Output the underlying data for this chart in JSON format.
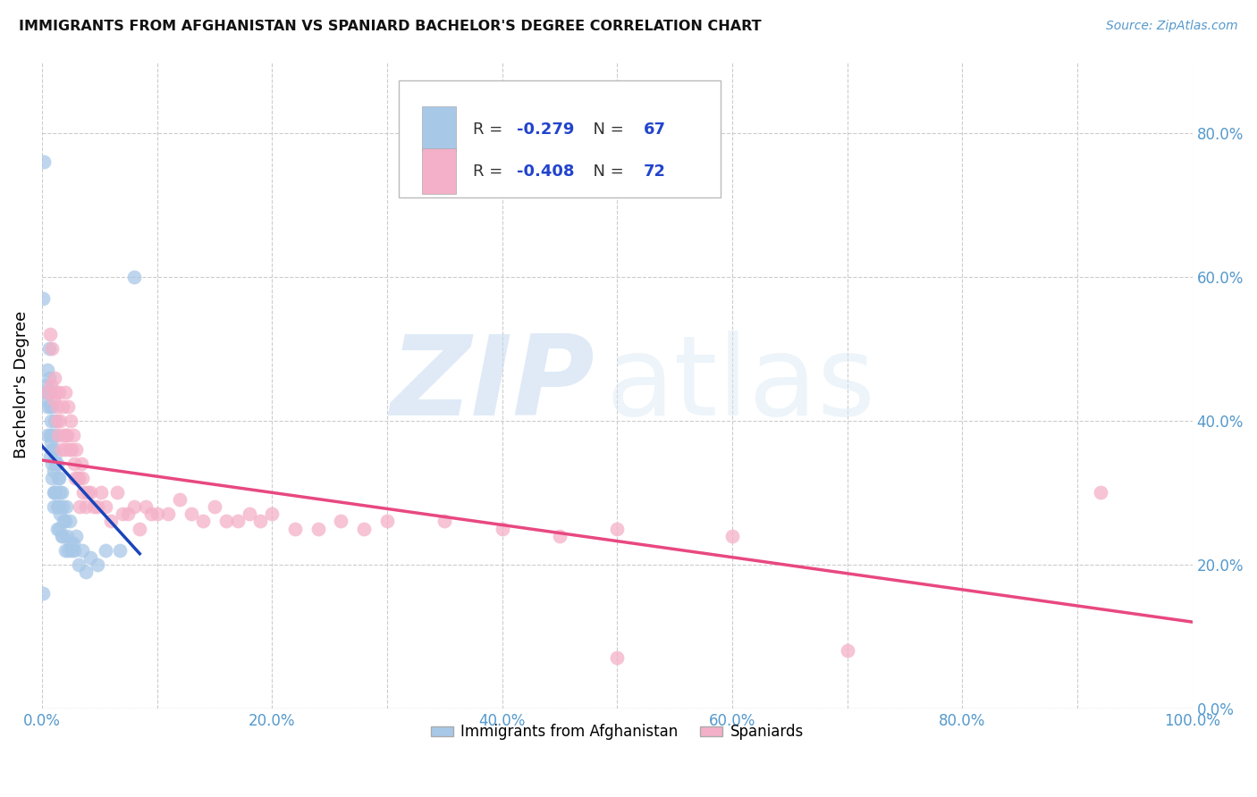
{
  "title": "IMMIGRANTS FROM AFGHANISTAN VS SPANIARD BACHELOR'S DEGREE CORRELATION CHART",
  "source": "Source: ZipAtlas.com",
  "ylabel": "Bachelor's Degree",
  "legend_label1": "Immigrants from Afghanistan",
  "legend_label2": "Spaniards",
  "r1": -0.279,
  "n1": 67,
  "r2": -0.408,
  "n2": 72,
  "color1": "#a8c8e8",
  "color2": "#f4b0c8",
  "line_color1": "#1a44bb",
  "line_color2": "#e84880",
  "bg_color": "#ffffff",
  "grid_color": "#cccccc",
  "watermark_zip": "ZIP",
  "watermark_atlas": "atlas",
  "xlim": [
    0.0,
    1.0
  ],
  "ylim": [
    0.0,
    0.9
  ],
  "xticks": [
    0.0,
    0.1,
    0.2,
    0.3,
    0.4,
    0.5,
    0.6,
    0.7,
    0.8,
    0.9,
    1.0
  ],
  "xtick_labels_show": [
    0.0,
    0.2,
    0.4,
    0.6,
    0.8,
    1.0
  ],
  "xtick_labels": [
    "0.0%",
    "",
    "20.0%",
    "",
    "40.0%",
    "",
    "60.0%",
    "",
    "80.0%",
    "",
    "100.0%"
  ],
  "yticks": [
    0.0,
    0.2,
    0.4,
    0.6,
    0.8
  ],
  "ytick_labels_right": [
    "0.0%",
    "20.0%",
    "40.0%",
    "60.0%",
    "80.0%"
  ],
  "scatter1_x": [
    0.001,
    0.002,
    0.003,
    0.004,
    0.004,
    0.005,
    0.005,
    0.005,
    0.006,
    0.006,
    0.006,
    0.007,
    0.007,
    0.007,
    0.008,
    0.008,
    0.008,
    0.009,
    0.009,
    0.009,
    0.009,
    0.009,
    0.01,
    0.01,
    0.01,
    0.01,
    0.011,
    0.011,
    0.011,
    0.012,
    0.012,
    0.012,
    0.013,
    0.013,
    0.013,
    0.014,
    0.014,
    0.015,
    0.015,
    0.015,
    0.016,
    0.016,
    0.017,
    0.017,
    0.018,
    0.018,
    0.019,
    0.02,
    0.02,
    0.021,
    0.022,
    0.023,
    0.024,
    0.025,
    0.026,
    0.027,
    0.028,
    0.03,
    0.032,
    0.035,
    0.038,
    0.042,
    0.048,
    0.055,
    0.068,
    0.08,
    0.001
  ],
  "scatter1_y": [
    0.16,
    0.76,
    0.44,
    0.43,
    0.45,
    0.42,
    0.38,
    0.47,
    0.5,
    0.46,
    0.44,
    0.42,
    0.38,
    0.35,
    0.44,
    0.4,
    0.37,
    0.42,
    0.38,
    0.36,
    0.34,
    0.32,
    0.36,
    0.33,
    0.3,
    0.28,
    0.4,
    0.35,
    0.3,
    0.38,
    0.34,
    0.3,
    0.34,
    0.28,
    0.25,
    0.32,
    0.28,
    0.32,
    0.28,
    0.25,
    0.3,
    0.27,
    0.3,
    0.24,
    0.28,
    0.24,
    0.26,
    0.26,
    0.22,
    0.28,
    0.24,
    0.22,
    0.26,
    0.23,
    0.22,
    0.23,
    0.22,
    0.24,
    0.2,
    0.22,
    0.19,
    0.21,
    0.2,
    0.22,
    0.22,
    0.6,
    0.57
  ],
  "scatter2_x": [
    0.005,
    0.007,
    0.008,
    0.009,
    0.01,
    0.011,
    0.012,
    0.013,
    0.013,
    0.014,
    0.015,
    0.016,
    0.017,
    0.018,
    0.019,
    0.02,
    0.02,
    0.021,
    0.022,
    0.023,
    0.024,
    0.025,
    0.026,
    0.027,
    0.028,
    0.029,
    0.03,
    0.031,
    0.032,
    0.033,
    0.034,
    0.035,
    0.036,
    0.038,
    0.04,
    0.042,
    0.045,
    0.048,
    0.051,
    0.055,
    0.06,
    0.065,
    0.07,
    0.075,
    0.08,
    0.085,
    0.09,
    0.095,
    0.1,
    0.11,
    0.12,
    0.13,
    0.14,
    0.15,
    0.16,
    0.17,
    0.18,
    0.19,
    0.2,
    0.22,
    0.24,
    0.26,
    0.28,
    0.3,
    0.35,
    0.4,
    0.45,
    0.5,
    0.6,
    0.7,
    0.92,
    0.5
  ],
  "scatter2_y": [
    0.44,
    0.52,
    0.45,
    0.5,
    0.43,
    0.46,
    0.44,
    0.42,
    0.4,
    0.38,
    0.44,
    0.4,
    0.36,
    0.42,
    0.38,
    0.44,
    0.36,
    0.38,
    0.38,
    0.42,
    0.36,
    0.4,
    0.36,
    0.38,
    0.34,
    0.32,
    0.36,
    0.32,
    0.32,
    0.28,
    0.34,
    0.32,
    0.3,
    0.28,
    0.3,
    0.3,
    0.28,
    0.28,
    0.3,
    0.28,
    0.26,
    0.3,
    0.27,
    0.27,
    0.28,
    0.25,
    0.28,
    0.27,
    0.27,
    0.27,
    0.29,
    0.27,
    0.26,
    0.28,
    0.26,
    0.26,
    0.27,
    0.26,
    0.27,
    0.25,
    0.25,
    0.26,
    0.25,
    0.26,
    0.26,
    0.25,
    0.24,
    0.25,
    0.24,
    0.08,
    0.3,
    0.07
  ],
  "line1_x": [
    0.0,
    0.085
  ],
  "line1_y_start": 0.365,
  "line1_y_end": 0.215,
  "line2_x": [
    0.0,
    1.0
  ],
  "line2_y_start": 0.345,
  "line2_y_end": 0.12
}
